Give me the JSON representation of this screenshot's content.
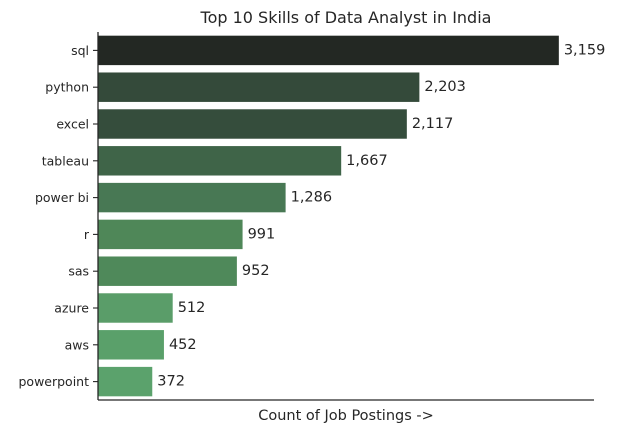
{
  "chart_data": {
    "type": "bar",
    "orientation": "horizontal",
    "title": "Top 10 Skills of Data Analyst in India",
    "xlabel": "Count of Job Postings ->",
    "ylabel": "",
    "categories": [
      "sql",
      "python",
      "excel",
      "tableau",
      "power bi",
      "r",
      "sas",
      "azure",
      "aws",
      "powerpoint"
    ],
    "values": [
      3159,
      2203,
      2117,
      1667,
      1286,
      991,
      952,
      512,
      452,
      372
    ],
    "data_labels": [
      "3,159",
      "2,203",
      "2,117",
      "1,667",
      "1,286",
      "991",
      "952",
      "512",
      "452",
      "372"
    ],
    "xlim": [
      0,
      3400
    ],
    "x_ticks_visible": false,
    "grid": false,
    "palette": {
      "sql": "#232823",
      "python": "#344a3a",
      "excel": "#354d3c",
      "tableau": "#3f6448",
      "power bi": "#487854",
      "r": "#4f8758",
      "sas": "#4f895a",
      "azure": "#5a9d69",
      "aws": "#5aa06a",
      "powerpoint": "#5ba26c"
    }
  }
}
